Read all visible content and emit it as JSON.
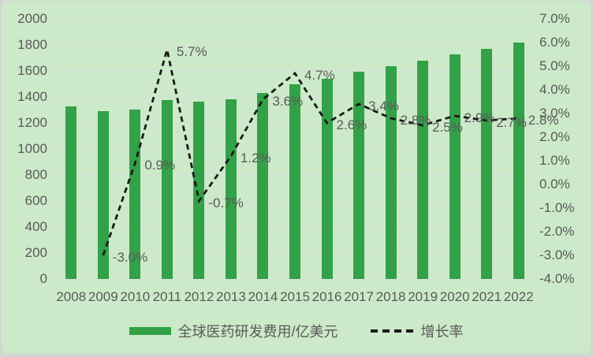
{
  "chart_data": {
    "type": "combo-bar-line",
    "categories": [
      "2008",
      "2009",
      "2010",
      "2011",
      "2012",
      "2013",
      "2014",
      "2015",
      "2016",
      "2017",
      "2018",
      "2019",
      "2020",
      "2021",
      "2022"
    ],
    "series": [
      {
        "name": "全球医药研发费用/亿美元",
        "type": "bar",
        "axis": "left",
        "values": [
          1330,
          1290,
          1302,
          1376,
          1366,
          1383,
          1432,
          1500,
          1539,
          1591,
          1635,
          1676,
          1725,
          1772,
          1821
        ]
      },
      {
        "name": "增长率",
        "type": "line",
        "axis": "right",
        "values": [
          null,
          -3.0,
          0.9,
          5.7,
          -0.7,
          1.2,
          3.6,
          4.7,
          2.6,
          3.4,
          2.8,
          2.5,
          2.9,
          2.7,
          2.8
        ],
        "point_labels": [
          null,
          "-3.0%",
          "0.9%",
          "5.7%",
          "-0.7%",
          "1.2%",
          "3.6%",
          "4.7%",
          "2.6%",
          "3.4%",
          "2.8%",
          "2.5%",
          "2.9%",
          "2.7%",
          "2.8%"
        ]
      }
    ],
    "left_axis": {
      "min": 0,
      "max": 2000,
      "step": 200,
      "ticks": [
        "0",
        "200",
        "400",
        "600",
        "800",
        "1000",
        "1200",
        "1400",
        "1600",
        "1800",
        "2000"
      ]
    },
    "right_axis": {
      "min": -4,
      "max": 7,
      "step": 1,
      "ticks": [
        "7.0%",
        "6.0%",
        "5.0%",
        "4.0%",
        "3.0%",
        "2.0%",
        "1.0%",
        "0.0%",
        "-1.0%",
        "-2.0%",
        "-3.0%",
        "-4.0%"
      ]
    },
    "grid": true,
    "legend_position": "bottom",
    "title": "",
    "colors": {
      "bar": "#32a147",
      "line": "#1a1a1a",
      "background": "#cceac9",
      "frame": "#d2d6d3",
      "gridline": "#d9dfdd",
      "text": "#595959"
    }
  },
  "legend": {
    "bar_label": "全球医药研发费用/亿美元",
    "line_label": "增长率"
  }
}
